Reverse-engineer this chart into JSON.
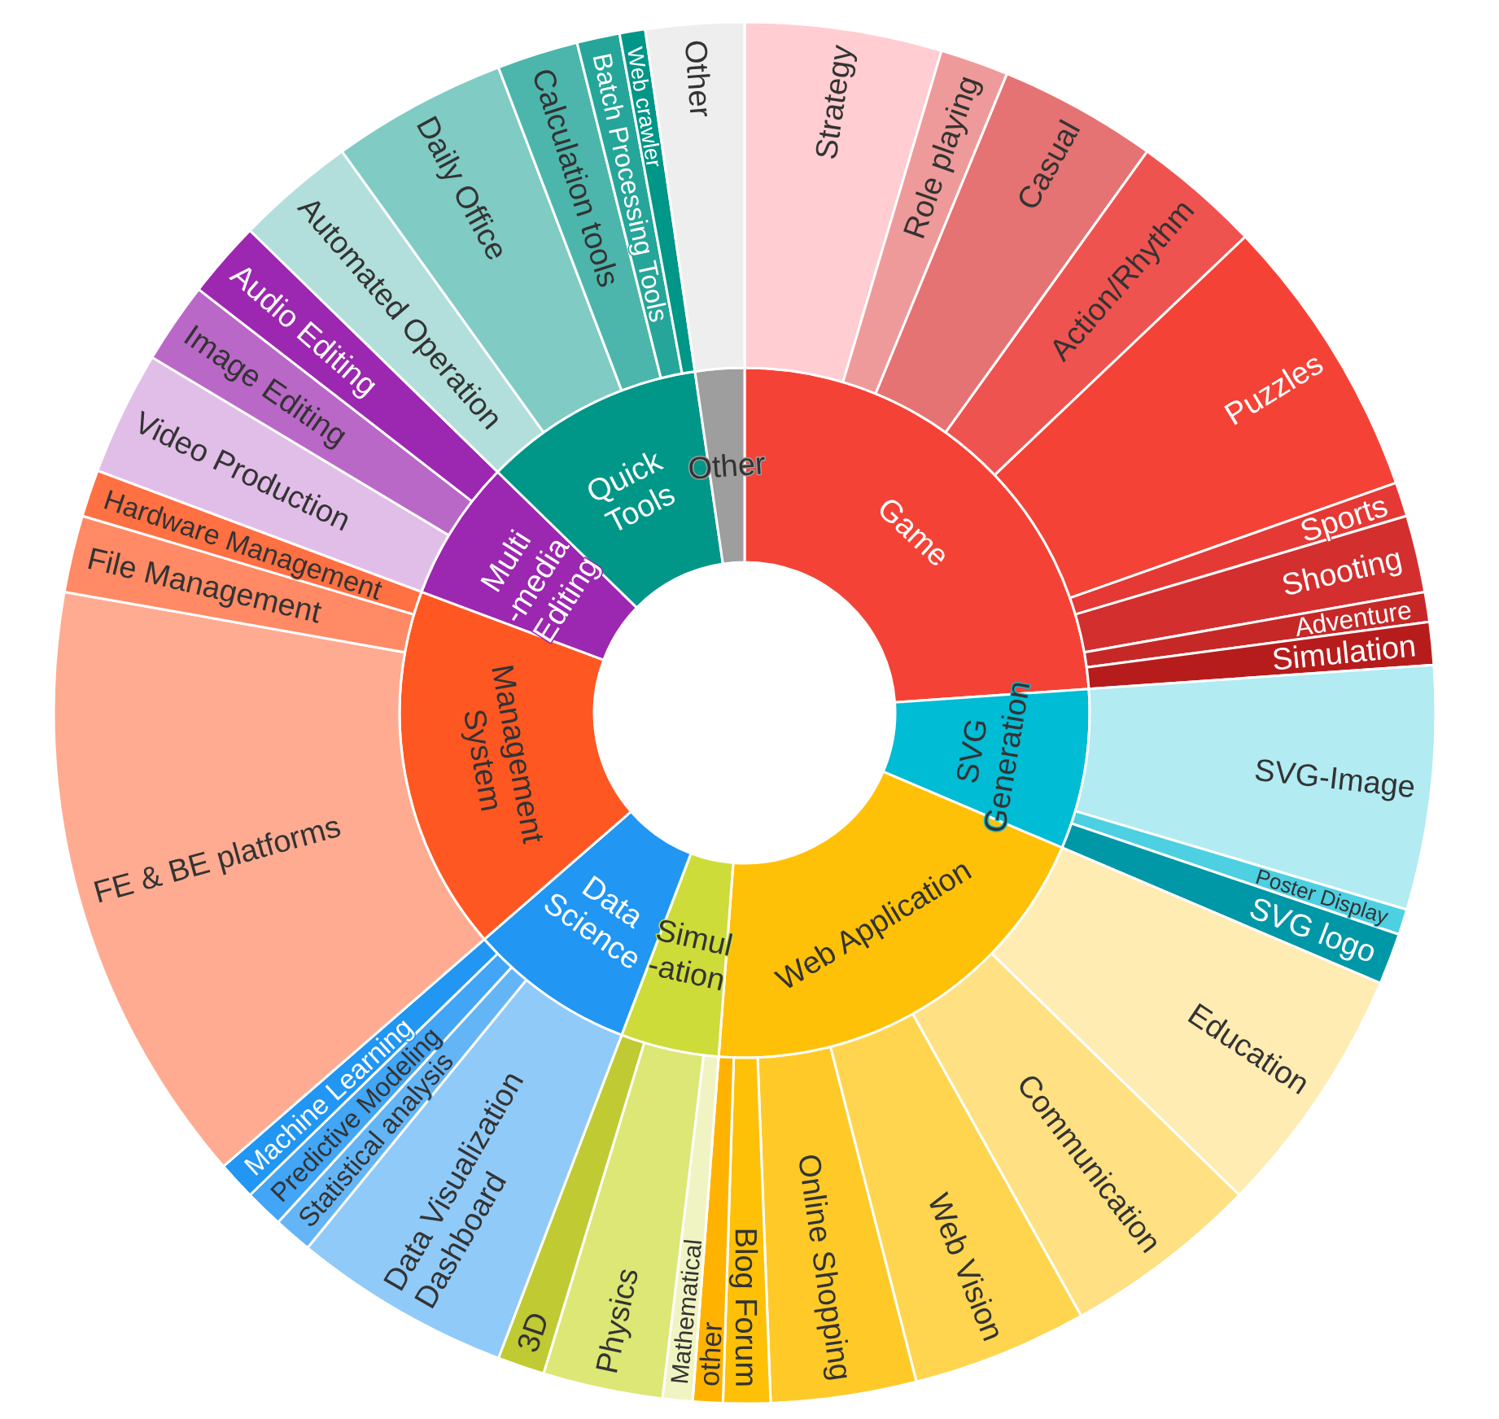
{
  "chart_data": [
    {
      "type": "donut",
      "categories": [
        "Game",
        "SVG\nGeneration",
        "Web Application",
        "Simul\n-ation",
        "Data\nScience",
        "Management\nSystem",
        "Multi\n-media\nEditing",
        "Quick\nTools",
        "Other"
      ],
      "values": [
        23.9,
        7.5,
        19.8,
        4.6,
        7.8,
        17.1,
        6.6,
        10.4,
        2.3
      ],
      "colors": [
        "#f44336",
        "#00bcd4",
        "#ffc107",
        "#cddc39",
        "#2196f3",
        "#ff5722",
        "#9c27b0",
        "#009688",
        "#9e9e9e"
      ]
    },
    {
      "type": "donut",
      "categories": [
        "Strategy",
        "Role playing",
        "Casual",
        "Action/Rhythm",
        "Puzzles",
        "Sports",
        "Shooting",
        "Adventure",
        "Simulation",
        "SVG-Image",
        "Poster Display",
        "SVG logo",
        "Education",
        "Communication",
        "Web Vision",
        "Online Shopping",
        "Blog Forum",
        "other",
        "Mathematical",
        "Physics",
        "3D",
        "Data Visualization\nDashboard",
        "Statistical analysis",
        "Predictive Modeling",
        "Machine Learning",
        "FE & BE platforms",
        "File Management",
        "Hardware Management",
        "Video Production",
        "Image Editing",
        "Audio Editing",
        "Automated Operation",
        "Daily Office",
        "Calculation tools",
        "Batch Processing Tools",
        "Web crawler",
        "Other"
      ],
      "values": [
        4.6,
        1.6,
        3.7,
        3.0,
        6.7,
        0.8,
        1.8,
        0.7,
        1.0,
        5.7,
        0.6,
        1.2,
        5.9,
        4.6,
        4.1,
        3.4,
        1.1,
        0.7,
        0.7,
        2.8,
        1.1,
        5.1,
        0.9,
        0.9,
        0.9,
        14.2,
        1.8,
        1.1,
        2.9,
        1.9,
        1.8,
        2.8,
        4.1,
        1.9,
        1.0,
        0.6,
        2.3
      ],
      "colors": [
        "#ffcdd2",
        "#ef9a9a",
        "#e57373",
        "#ef5350",
        "#f44336",
        "#e53935",
        "#d32f2f",
        "#c62828",
        "#b71c1c",
        "#b2ebf2",
        "#4dd0e1",
        "#0097a7",
        "#ffecb3",
        "#ffe082",
        "#ffd54f",
        "#ffca28",
        "#ffc107",
        "#ffb300",
        "#f0f4c3",
        "#dce775",
        "#c0ca33",
        "#90caf9",
        "#64b5f6",
        "#42a5f5",
        "#2196f3",
        "#ffab91",
        "#ff8a65",
        "#ff7043",
        "#e1bee7",
        "#ba68c8",
        "#9c27b0",
        "#b2dfdb",
        "#80cbc4",
        "#4db6ac",
        "#26a69a",
        "#009688",
        "#eeeeee"
      ]
    }
  ]
}
